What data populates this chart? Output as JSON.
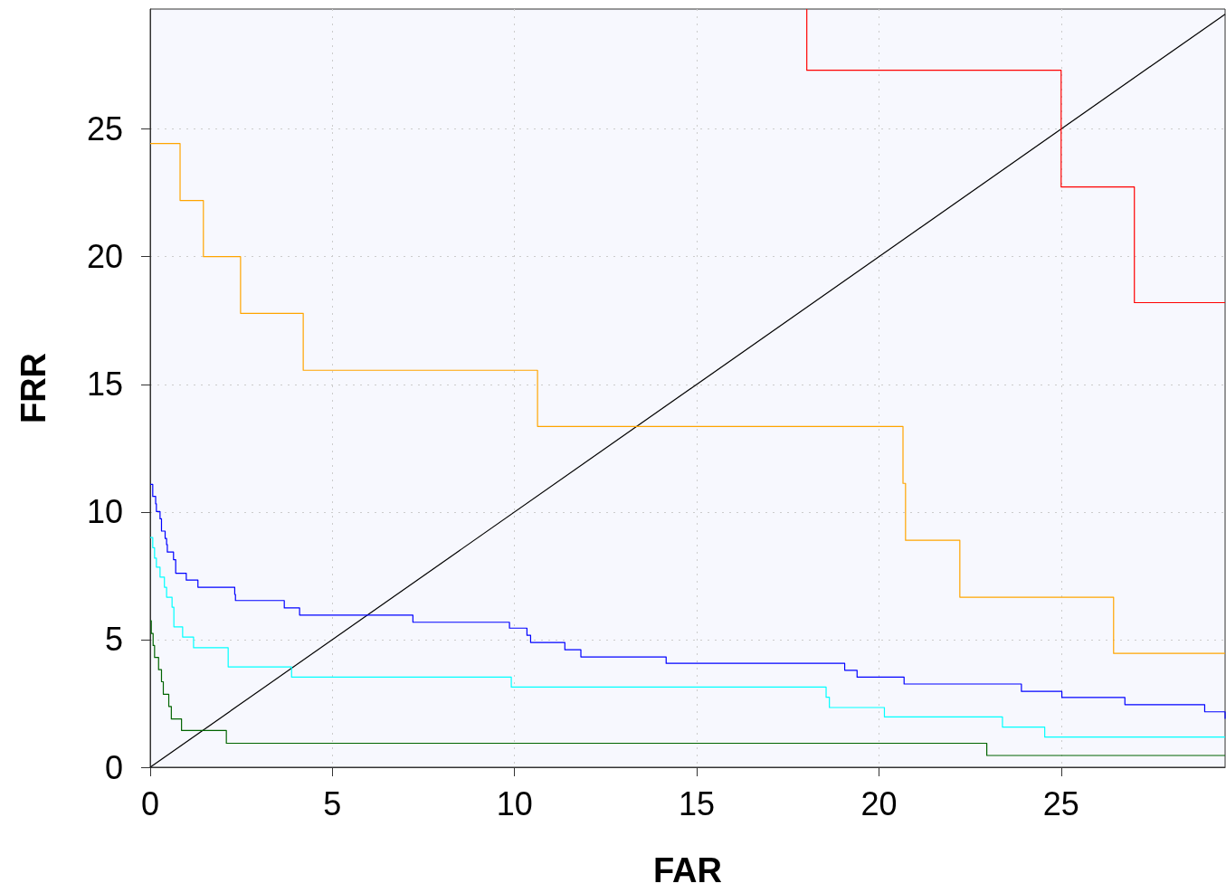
{
  "chart_data": {
    "type": "step",
    "xlabel": "FAR",
    "ylabel": "FRR",
    "xlim": [
      0,
      29.5
    ],
    "ylim": [
      0,
      29.7
    ],
    "xticks": [
      0,
      5,
      10,
      15,
      20,
      25
    ],
    "yticks": [
      0,
      5,
      10,
      15,
      20,
      25
    ],
    "grid": true,
    "marker": "none",
    "line_style": "solid",
    "series": [
      {
        "color": "#ff0000",
        "x": [
          18.02,
          18.02,
          25.0,
          27.01,
          29.5
        ],
        "values": [
          29.7,
          27.3,
          22.73,
          18.2,
          18.2
        ]
      },
      {
        "color": "#ffa500",
        "x": [
          0,
          0.82,
          1.46,
          2.48,
          4.2,
          10.63,
          20.66,
          20.73,
          22.22,
          26.44,
          29.5
        ],
        "values": [
          24.43,
          22.2,
          20.0,
          17.78,
          15.55,
          13.35,
          11.12,
          8.89,
          6.66,
          4.46,
          4.46
        ]
      },
      {
        "color": "#0000ff",
        "x": [
          0,
          0.07,
          0.15,
          0.17,
          0.27,
          0.31,
          0.41,
          0.45,
          0.47,
          0.64,
          0.7,
          0.99,
          1.31,
          2.32,
          2.34,
          3.68,
          4.1,
          7.21,
          9.86,
          10.34,
          10.44,
          11.38,
          11.82,
          14.16,
          19.06,
          19.4,
          20.69,
          23.91,
          25.02,
          26.75,
          28.94,
          29.5
        ],
        "values": [
          11.08,
          10.61,
          10.32,
          10.02,
          9.73,
          9.25,
          8.96,
          8.72,
          8.43,
          8.13,
          7.6,
          7.33,
          7.05,
          6.77,
          6.53,
          6.24,
          5.96,
          5.68,
          5.45,
          5.17,
          4.89,
          4.6,
          4.32,
          4.07,
          3.8,
          3.53,
          3.26,
          2.97,
          2.73,
          2.45,
          2.17,
          1.9
        ]
      },
      {
        "color": "#00ffff",
        "x": [
          0,
          0.07,
          0.12,
          0.17,
          0.27,
          0.39,
          0.45,
          0.6,
          0.65,
          0.89,
          1.19,
          2.14,
          3.88,
          9.91,
          18.55,
          18.64,
          20.15,
          23.39,
          24.55,
          29.5
        ],
        "values": [
          9.0,
          8.6,
          8.19,
          7.84,
          7.45,
          7.05,
          6.66,
          6.27,
          5.5,
          5.1,
          4.68,
          3.93,
          3.53,
          3.14,
          2.74,
          2.34,
          1.97,
          1.57,
          1.18,
          1.18
        ]
      },
      {
        "color": "#006400",
        "x": [
          0,
          0.03,
          0.08,
          0.12,
          0.23,
          0.31,
          0.36,
          0.51,
          0.58,
          0.86,
          2.09,
          22.96,
          29.5
        ],
        "values": [
          5.74,
          5.24,
          4.77,
          4.3,
          3.82,
          3.35,
          2.86,
          2.38,
          1.89,
          1.44,
          0.94,
          0.46,
          0.46
        ]
      },
      {
        "type": "line",
        "color": "#000000",
        "x": [
          0,
          29.5
        ],
        "values": [
          0,
          29.5
        ]
      }
    ]
  }
}
